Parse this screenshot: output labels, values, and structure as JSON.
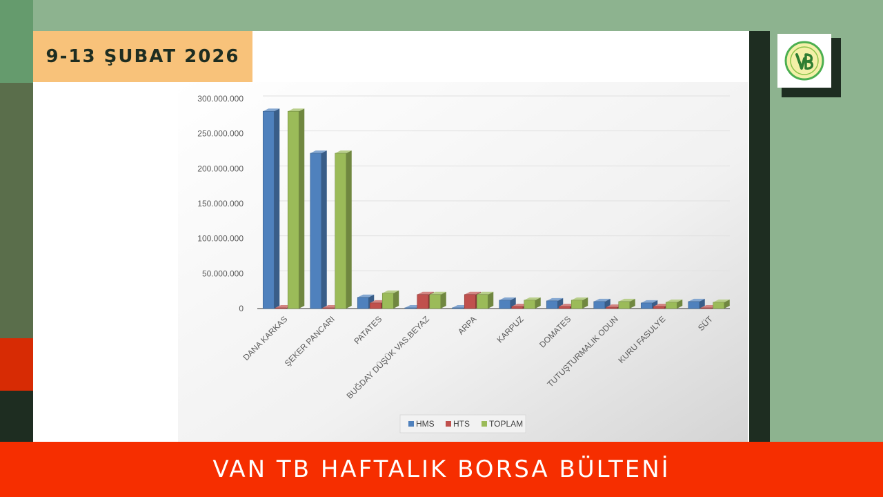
{
  "header": {
    "date": "9-13 ŞUBAT 2026"
  },
  "footer": {
    "title": "VAN TB HAFTALIK BORSA BÜLTENİ"
  },
  "colors": {
    "HMS": "#4f81bd",
    "HTS": "#c0504d",
    "TOPLAM": "#9bbb59",
    "accent": "#f62e00",
    "badge": "#f8c27a"
  },
  "logo": {
    "icon": "van-tb-logo-icon",
    "letters": "VTB"
  },
  "chart_data": {
    "type": "bar",
    "title": "",
    "xlabel": "",
    "ylabel": "",
    "ylim": [
      0,
      300000000
    ],
    "yticks": [
      0,
      50000000,
      100000000,
      150000000,
      200000000,
      250000000,
      300000000
    ],
    "ytick_labels": [
      "0",
      "50.000.000",
      "100.000.000",
      "150.000.000",
      "200.000.000",
      "250.000.000",
      "300.000.000"
    ],
    "grid": true,
    "legend_position": "bottom",
    "categories": [
      "DANA KARKAS",
      "ŞEKER PANCARI",
      "PATATES",
      "BUĞDAY DÜŞÜK VAS.BEYAZ",
      "ARPA",
      "KARPUZ",
      "DOMATES",
      "TUTUŞTURMALIK ODUN",
      "KURU FASULYE",
      "SÜT"
    ],
    "series": [
      {
        "name": "HMS",
        "values": [
          282000000,
          222000000,
          16000000,
          1000000,
          1000000,
          12000000,
          11000000,
          10000000,
          8000000,
          10000000
        ]
      },
      {
        "name": "HTS",
        "values": [
          1000000,
          1000000,
          8000000,
          20000000,
          20000000,
          3000000,
          3000000,
          2000000,
          3000000,
          1000000
        ]
      },
      {
        "name": "TOPLAM",
        "values": [
          282000000,
          222000000,
          22000000,
          20000000,
          20000000,
          12000000,
          12000000,
          10000000,
          9000000,
          9000000
        ]
      }
    ]
  }
}
